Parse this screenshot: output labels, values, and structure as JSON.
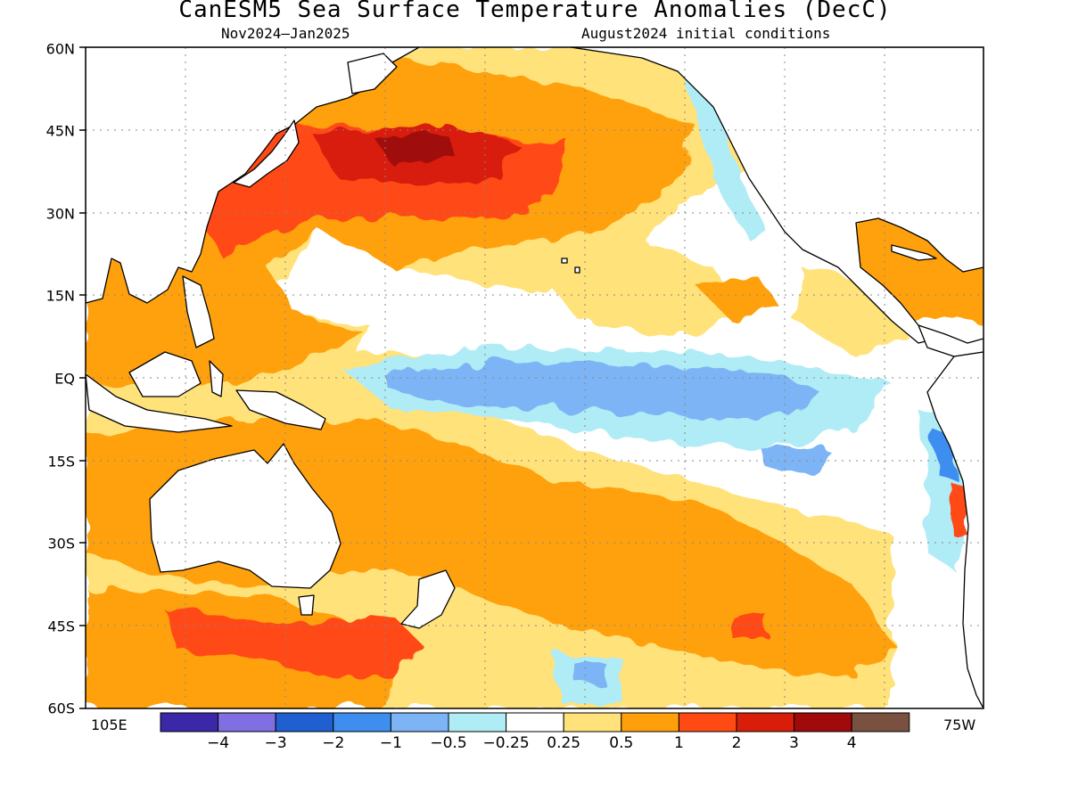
{
  "title": "CanESM5 Sea Surface Temperature Anomalies (DecC)",
  "subtitle_left": "Nov2024–Jan2025",
  "subtitle_right": "August2024 initial conditions",
  "lat_labels": [
    "60N",
    "45N",
    "30N",
    "15N",
    "EQ",
    "15S",
    "30S",
    "45S",
    "60S"
  ],
  "lon_left_label": "105E",
  "lon_right_label": "75W",
  "colorbar": {
    "colors": [
      "#3b28a8",
      "#7f6fe3",
      "#1f5fcf",
      "#3e8ef0",
      "#7cb4f5",
      "#b0ecf5",
      "#ffffff",
      "#ffe27a",
      "#ffa00a",
      "#ff4a14",
      "#d81e0a",
      "#a00a0a",
      "#7a5040"
    ],
    "tick_labels": [
      "−4",
      "−3",
      "−2",
      "−1",
      "−0.5",
      "−0.25",
      "0.25",
      "0.5",
      "1",
      "2",
      "3",
      "4"
    ]
  },
  "map_data": {
    "variable": "Sea Surface Temperature Anomalies",
    "units": "DecC",
    "lat_range": [
      -60,
      60
    ],
    "lon_range": [
      105,
      285
    ],
    "regions": [
      {
        "name": "central-equatorial-pacific",
        "anomaly_band": "-1 to -0.5",
        "color": "#7cb4f5"
      },
      {
        "name": "northwest-pacific-near-japan",
        "anomaly_band": "2 to 4",
        "color": "#d81e0a"
      },
      {
        "name": "western-pacific-warm-pool",
        "anomaly_band": "0.5 to 1",
        "color": "#ffa00a"
      },
      {
        "name": "south-pacific",
        "anomaly_band": "0.5 to 1",
        "color": "#ffa00a"
      },
      {
        "name": "peru-coast",
        "anomaly_band": "-2 to -0.5",
        "color": "#3e8ef0"
      }
    ]
  }
}
